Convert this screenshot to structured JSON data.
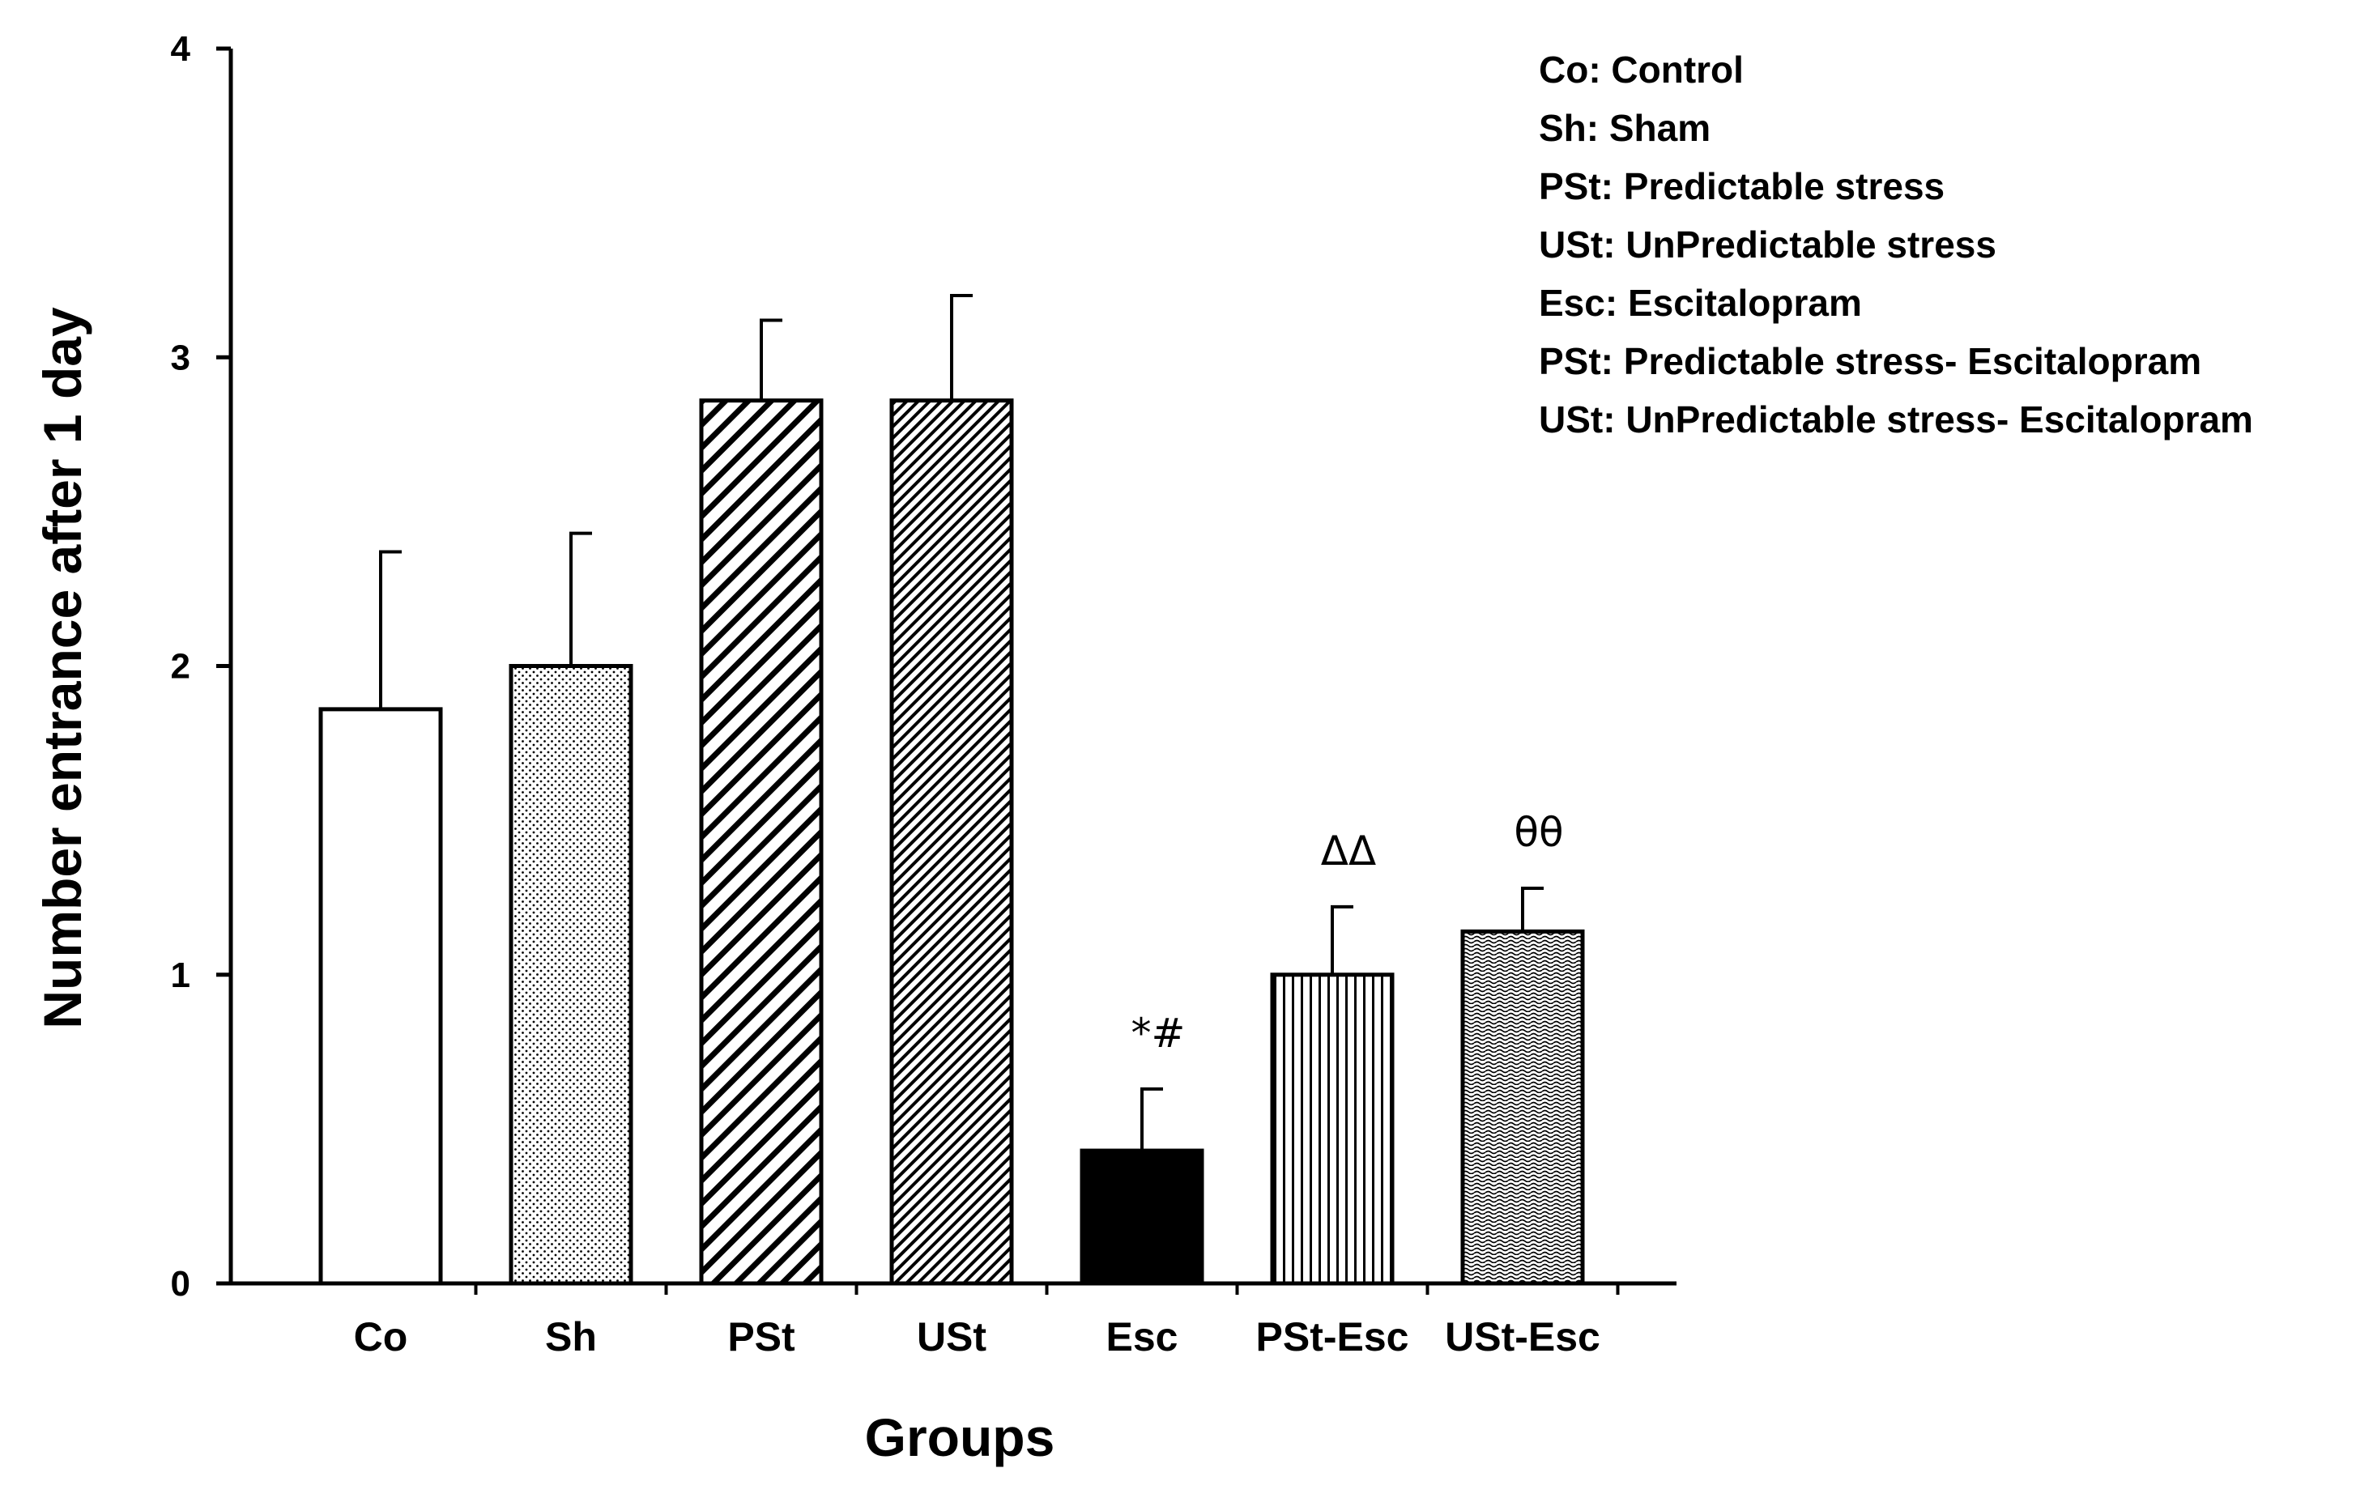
{
  "chart_data": {
    "type": "bar",
    "title": "",
    "xlabel": "Groups",
    "ylabel": "Number entrance after 1 day",
    "ylim": [
      0,
      4
    ],
    "yticks": [
      "0",
      "1",
      "2",
      "3",
      "4"
    ],
    "categories": [
      "Co",
      "Sh",
      "PSt",
      "USt",
      "Esc",
      "PSt-Esc",
      "USt-Esc"
    ],
    "values": [
      1.86,
      2.0,
      2.86,
      2.86,
      0.43,
      1.0,
      1.14
    ],
    "errors": [
      0.51,
      0.43,
      0.26,
      0.34,
      0.2,
      0.22,
      0.14
    ],
    "annotations": [
      "",
      "",
      "",
      "",
      "*#",
      "ΔΔ",
      "θθ"
    ],
    "fills": [
      "white",
      "dots",
      "diag-wide",
      "diag-dense",
      "black",
      "vertical",
      "wave"
    ],
    "legend": [
      "Co: Control",
      "Sh: Sham",
      "PSt: Predictable stress",
      "USt: UnPredictable stress",
      "Esc: Escitalopram",
      "PSt: Predictable stress- Escitalopram",
      "USt: UnPredictable stress- Escitalopram"
    ]
  }
}
